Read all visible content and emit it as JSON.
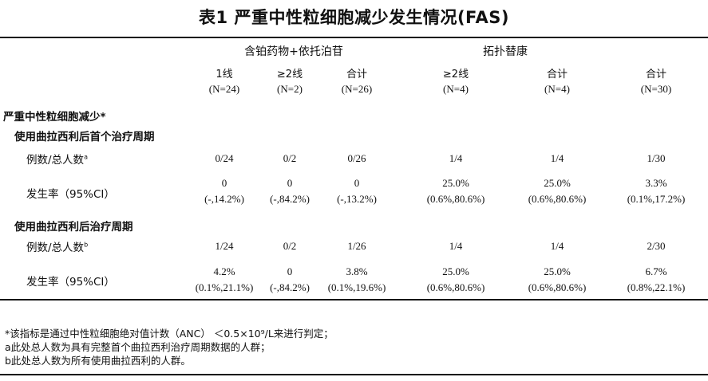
{
  "title": "表1 严重中性粒细胞减少发生情况(FAS)",
  "groups": {
    "g1": "含铂药物+依托泊苷",
    "g2": "拓扑替康"
  },
  "columns": [
    {
      "label": "1线",
      "n": "(N=24)"
    },
    {
      "label": "≥2线",
      "n": "(N=2)"
    },
    {
      "label": "合计",
      "n": "(N=26)"
    },
    {
      "label": "≥2线",
      "n": "(N=4)"
    },
    {
      "label": "合计",
      "n": "(N=4)"
    },
    {
      "label": "合计",
      "n": "(N=30)"
    }
  ],
  "section": "严重中性粒细胞减少*",
  "sub1": {
    "heading": "使用曲拉西利后首个治疗周期",
    "count_label": "例数/总人数",
    "count_sup": "a",
    "counts": [
      "0/24",
      "0/2",
      "0/26",
      "1/4",
      "1/4",
      "1/30"
    ],
    "rate_label": "发生率（95%CI）",
    "rates": [
      "0",
      "0",
      "0",
      "25.0%",
      "25.0%",
      "3.3%"
    ],
    "ci": [
      "(-,14.2%)",
      "(-,84.2%)",
      "(-,13.2%)",
      "(0.6%,80.6%)",
      "(0.6%,80.6%)",
      "(0.1%,17.2%)"
    ]
  },
  "sub2": {
    "heading": "使用曲拉西利后治疗周期",
    "count_label": "例数/总人数",
    "count_sup": "b",
    "counts": [
      "1/24",
      "0/2",
      "1/26",
      "1/4",
      "1/4",
      "2/30"
    ],
    "rate_label": "发生率（95%CI）",
    "rates": [
      "4.2%",
      "0",
      "3.8%",
      "25.0%",
      "25.0%",
      "6.7%"
    ],
    "ci": [
      "(0.1%,21.1%)",
      "(-,84.2%)",
      "(0.1%,19.6%)",
      "(0.6%,80.6%)",
      "(0.6%,80.6%)",
      "(0.8%,22.1%)"
    ]
  },
  "footnotes": [
    "*该指标是通过中性粒细胞绝对值计数（ANC） ＜0.5×10⁹/L来进行判定；",
    "a此处总人数为具有完整首个曲拉西利治疗周期数据的人群；",
    "b此处总人数为所有使用曲拉西利的人群。"
  ]
}
